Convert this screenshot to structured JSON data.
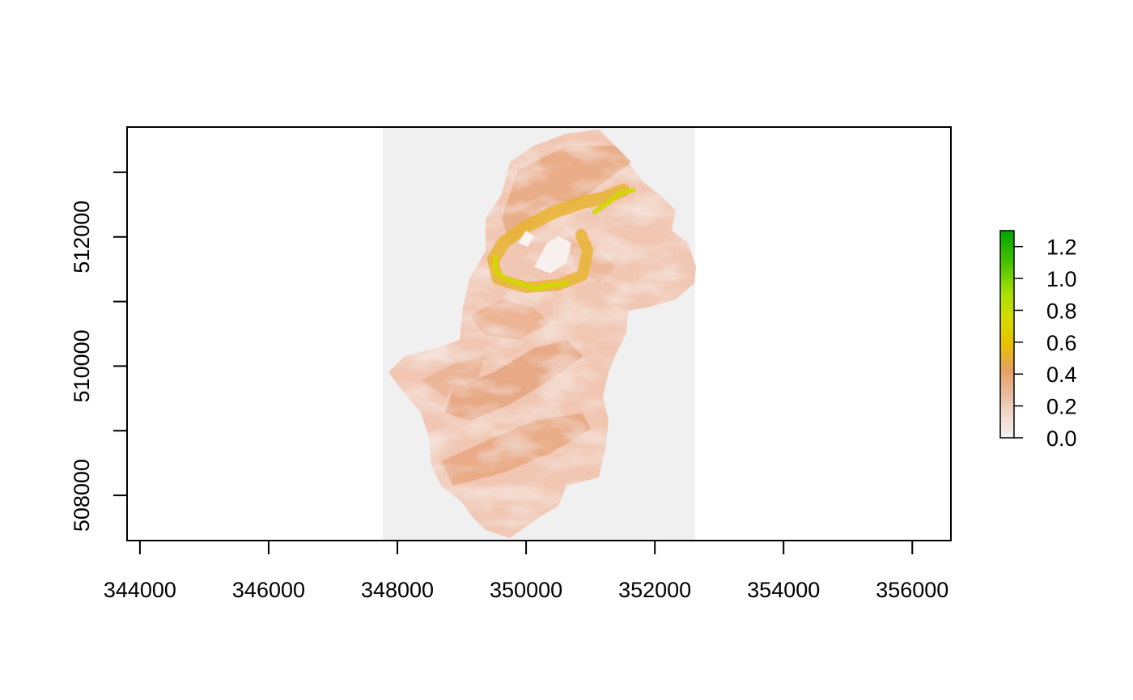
{
  "chart_data": {
    "type": "heatmap",
    "title": "",
    "xlabel": "",
    "ylabel": "",
    "xlim": [
      343800,
      356600
    ],
    "ylim": [
      507300,
      513700
    ],
    "x_ticks": [
      "344000",
      "346000",
      "348000",
      "350000",
      "352000",
      "354000",
      "356000"
    ],
    "y_ticks": [
      "508000",
      "510000",
      "512000"
    ],
    "y_tick_values": [
      507000,
      508000,
      509000,
      510000,
      511000,
      512000,
      513000
    ],
    "raster_extent": {
      "xmin": 347750,
      "xmax": 352600,
      "ymin": 507300,
      "ymax": 513700
    },
    "legend": {
      "placement": "right",
      "min": 0.0,
      "max": 1.3,
      "labels": [
        "0.0",
        "0.2",
        "0.4",
        "0.6",
        "0.8",
        "1.0",
        "1.2"
      ],
      "colors": [
        "#f2f2f2",
        "#eec3ab",
        "#e4a060",
        "#e8cb00",
        "#bfe000",
        "#64c800",
        "#00a600"
      ]
    },
    "na_color": "#f0f0f0",
    "palette": "terrain"
  }
}
